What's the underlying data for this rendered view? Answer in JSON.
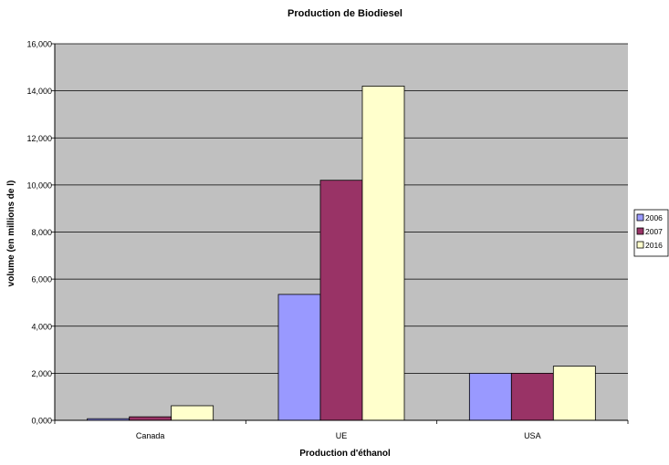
{
  "chart_data": {
    "type": "bar",
    "title": "Production de Biodiesel",
    "xlabel": "Production d'éthanol",
    "ylabel": "volume (en millions de l)",
    "categories": [
      "Canada",
      "UE",
      "USA"
    ],
    "series": [
      {
        "name": "2006",
        "color": "#9999ff",
        "values": [
          70,
          5350,
          2000
        ]
      },
      {
        "name": "2007",
        "color": "#993366",
        "values": [
          150,
          10200,
          2000
        ]
      },
      {
        "name": "2016",
        "color": "#ffffcc",
        "values": [
          620,
          14200,
          2300
        ]
      }
    ],
    "ylim": [
      0,
      16000
    ],
    "yticks": [
      0,
      2000,
      4000,
      6000,
      8000,
      10000,
      12000,
      14000,
      16000
    ],
    "ytick_labels": [
      "0,000",
      "2,000",
      "4,000",
      "6,000",
      "8,000",
      "10,000",
      "12,000",
      "14,000",
      "16,000"
    ],
    "plot_background": "#c0c0c0",
    "grid": true,
    "legend_position": "right"
  }
}
